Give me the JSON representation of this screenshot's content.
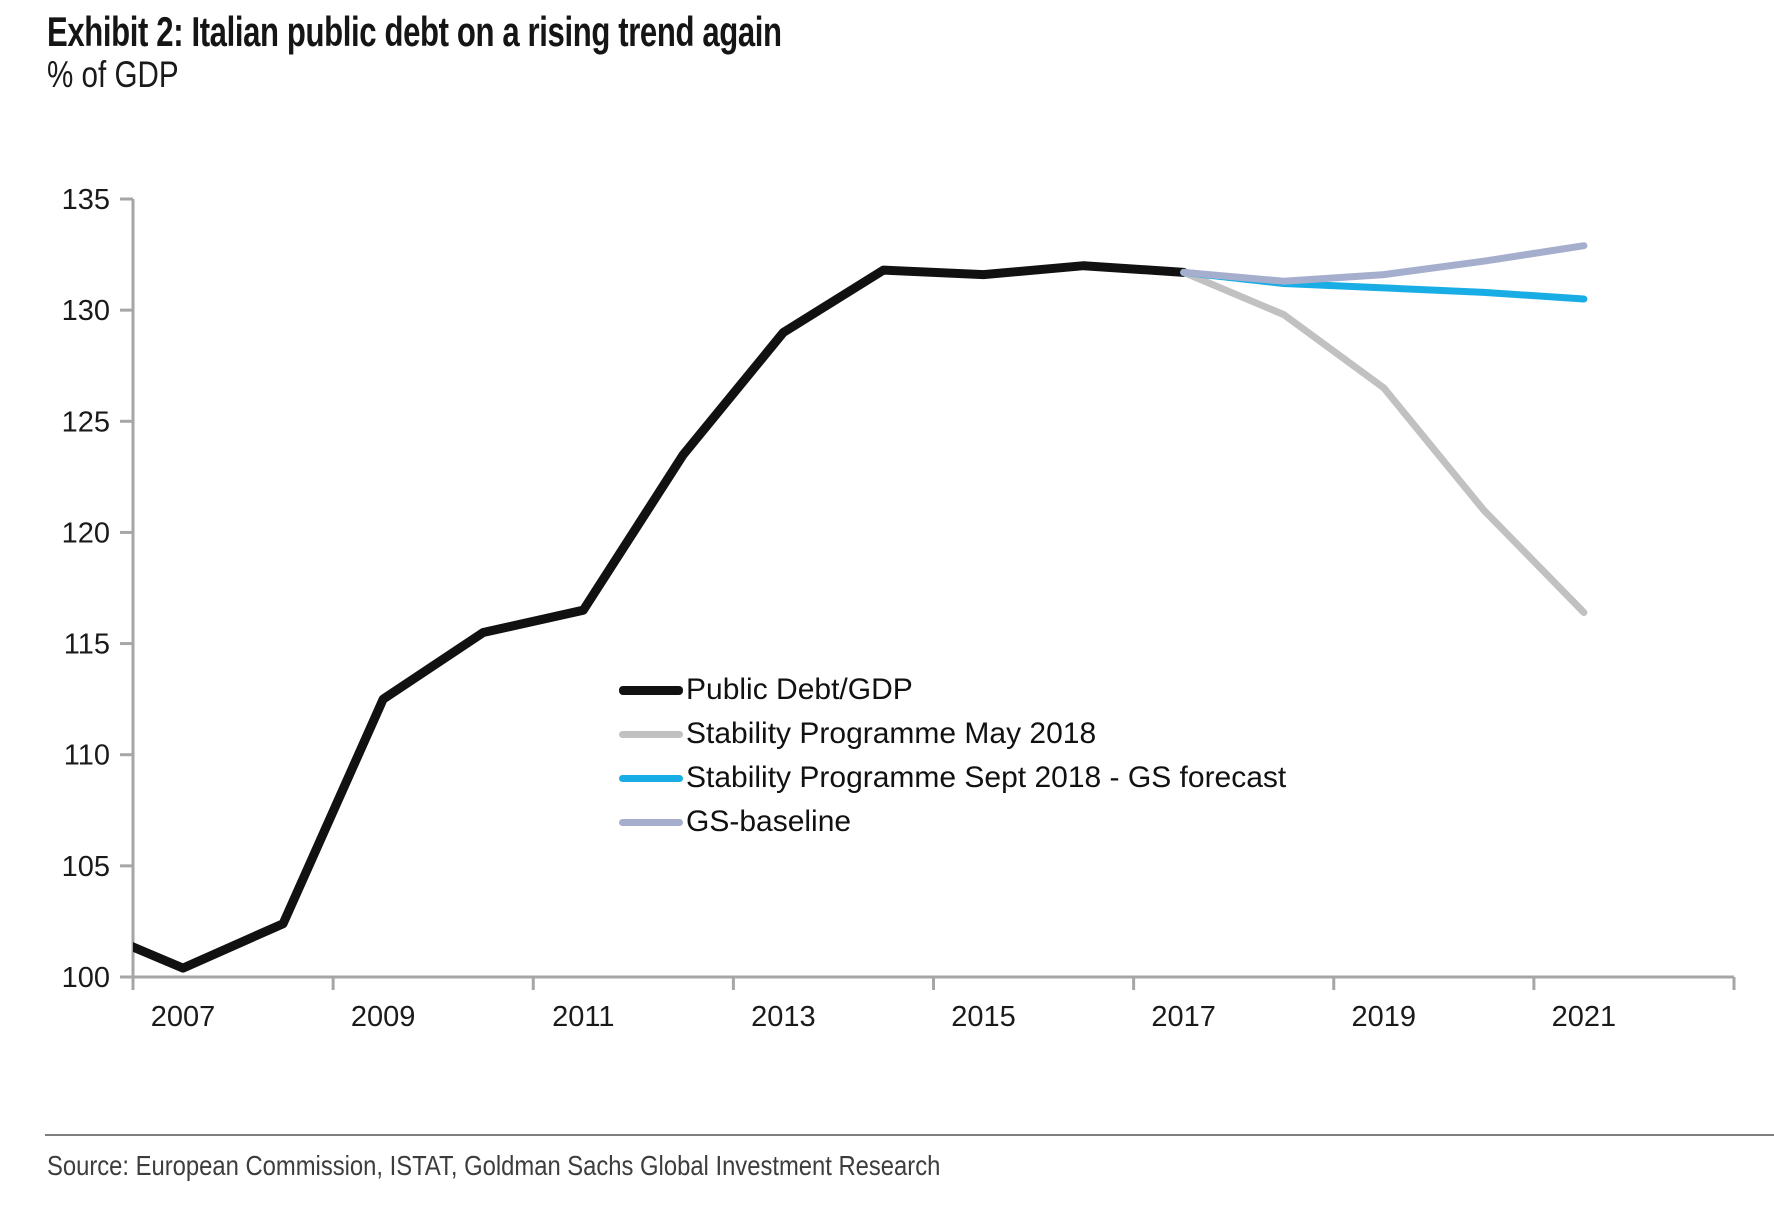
{
  "header": {
    "title": "Exhibit 2: Italian public debt on a rising trend again",
    "subtitle": "% of GDP"
  },
  "footer": {
    "source": "Source: European Commission, ISTAT, Goldman Sachs Global Investment Research"
  },
  "chart_data": {
    "type": "line",
    "title": "Exhibit 2: Italian public debt on a rising trend again",
    "ylabel": "% of GDP",
    "xlabel": "",
    "ylim": [
      100,
      135
    ],
    "ytick_interval": 5,
    "ytick_labels": [
      "100",
      "105",
      "110",
      "115",
      "120",
      "125",
      "130",
      "135"
    ],
    "x_axis_span_years": [
      2006.5,
      2022.5
    ],
    "x_tick_step_years": 2,
    "x_tick_label_years": [
      "2007",
      "2009",
      "2011",
      "2013",
      "2015",
      "2017",
      "2019",
      "2021"
    ],
    "grid": false,
    "legend_position": "inside-center-left",
    "axis_color": "#a6a6a6",
    "label_color": "#1a1a1a",
    "series": [
      {
        "name": "Public Debt/GDP",
        "slug": "public-debt-gdp",
        "color": "#111111",
        "stroke_width": 9,
        "x": [
          2006,
          2007,
          2008,
          2009,
          2010,
          2011,
          2012,
          2013,
          2014,
          2015,
          2016,
          2017
        ],
        "values": [
          102.3,
          100.4,
          102.4,
          112.5,
          115.5,
          116.5,
          123.5,
          129.0,
          131.8,
          131.6,
          132.0,
          131.7
        ]
      },
      {
        "name": "Stability Programme May 2018",
        "slug": "stability-programme-may-2018",
        "color": "#c1c1c1",
        "stroke_width": 7,
        "x": [
          2017,
          2018,
          2019,
          2020,
          2021
        ],
        "values": [
          131.7,
          129.8,
          126.5,
          121.0,
          116.4
        ]
      },
      {
        "name": "Stability Programme Sept 2018 - GS forecast",
        "slug": "stability-programme-sept-2018-gs-forecast",
        "color": "#19ade6",
        "stroke_width": 7,
        "x": [
          2017,
          2018,
          2019,
          2020,
          2021
        ],
        "values": [
          131.7,
          131.2,
          131.0,
          130.8,
          130.5
        ]
      },
      {
        "name": "GS-baseline",
        "slug": "gs-baseline",
        "color": "#a5aecd",
        "stroke_width": 7,
        "x": [
          2017,
          2018,
          2019,
          2020,
          2021
        ],
        "values": [
          131.7,
          131.3,
          131.6,
          132.2,
          132.9
        ]
      }
    ]
  }
}
